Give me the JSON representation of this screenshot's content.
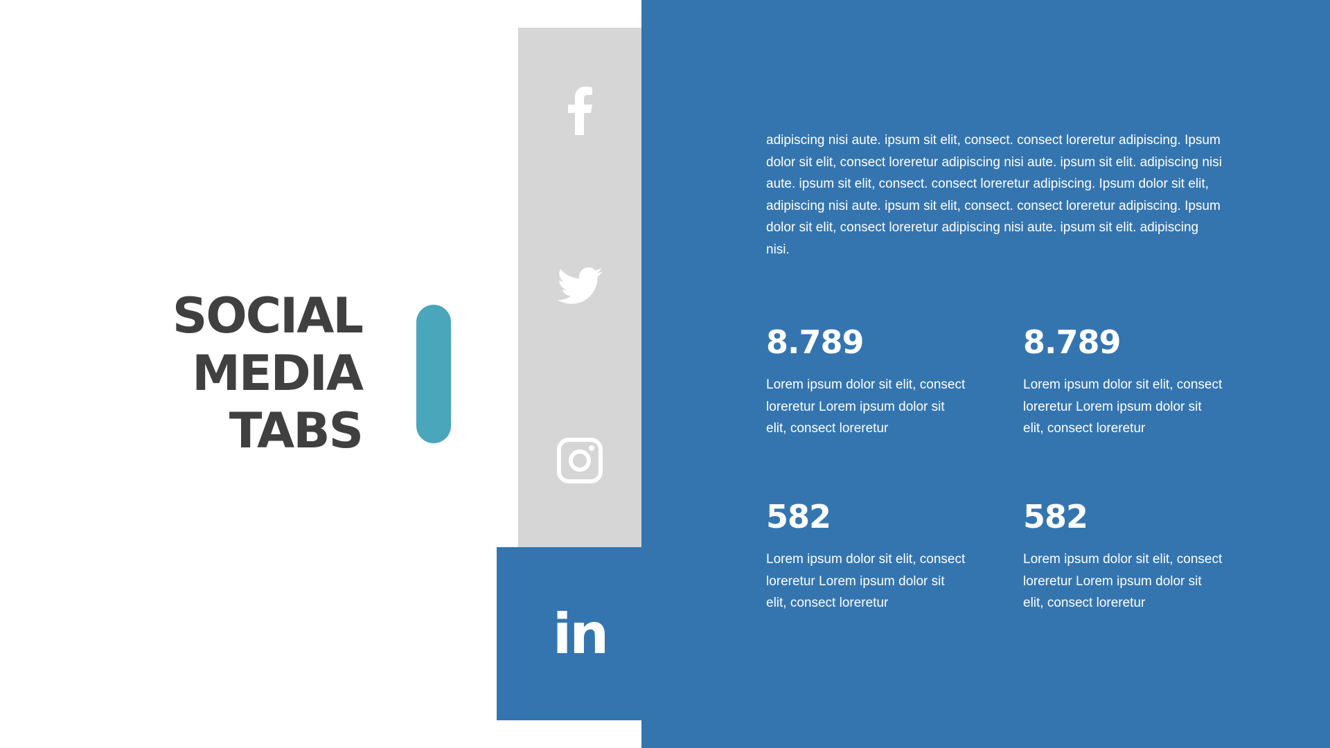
{
  "title": {
    "lines": [
      "SOCIAL",
      "MEDIA",
      "TABS"
    ]
  },
  "colors": {
    "accent_blue": "#3475b0",
    "teal": "#4aa6ba",
    "panel_gray": "#d6d6d6",
    "title": "#404040"
  },
  "icons": [
    "facebook-icon",
    "twitter-icon",
    "instagram-icon",
    "linkedin-icon"
  ],
  "linkedin_label": "in",
  "paragraph": "adipiscing nisi aute. ipsum sit elit, consect. consect loreretur adipiscing. Ipsum dolor sit elit, consect loreretur adipiscing nisi aute. ipsum sit elit. adipiscing nisi aute. ipsum sit elit, consect. consect loreretur adipiscing. Ipsum dolor sit elit, adipiscing nisi aute. ipsum sit elit, consect. consect loreretur adipiscing. Ipsum dolor sit elit, consect loreretur adipiscing nisi aute. ipsum sit elit. adipiscing nisi.",
  "stats": [
    {
      "value": "8.789",
      "text": "Lorem ipsum dolor sit elit, consect loreretur Lorem ipsum dolor sit elit, consect loreretur"
    },
    {
      "value": "8.789",
      "text": "Lorem ipsum dolor sit elit, consect loreretur Lorem ipsum dolor sit elit, consect loreretur"
    },
    {
      "value": "582",
      "text": "Lorem ipsum dolor sit elit, consect loreretur Lorem ipsum dolor sit elit, consect loreretur"
    },
    {
      "value": "582",
      "text": "Lorem ipsum dolor sit elit, consect loreretur Lorem ipsum dolor sit elit, consect loreretur"
    }
  ]
}
